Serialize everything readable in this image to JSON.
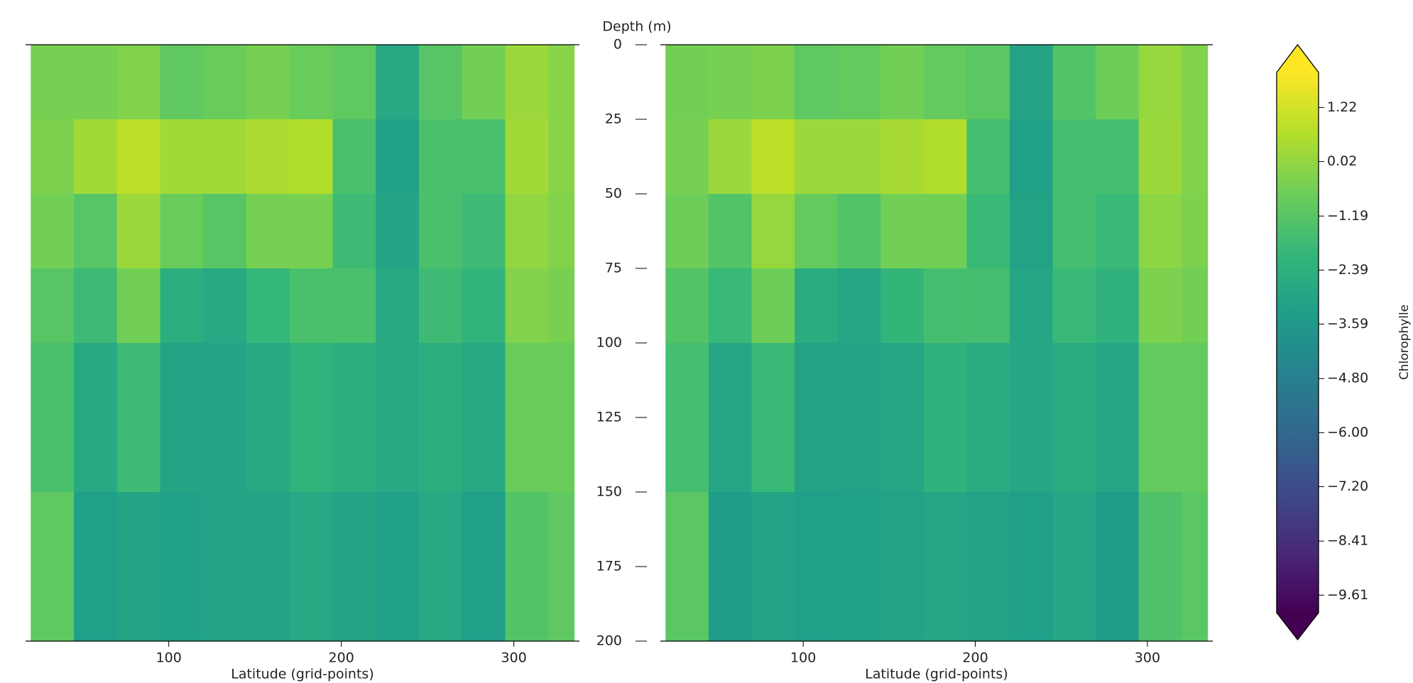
{
  "chart_data": [
    {
      "type": "heatmap",
      "xlabel": "Latitude (grid-points)",
      "ylabel": "Depth (m)",
      "xlim": [
        17,
        338
      ],
      "xticks": [
        100,
        200,
        300
      ],
      "ylim": [
        200,
        0
      ],
      "yticks": [
        0,
        25,
        50,
        75,
        100,
        125,
        150,
        175,
        200
      ],
      "x_edges": [
        20,
        45,
        70,
        95,
        120,
        145,
        170,
        195,
        220,
        245,
        270,
        295,
        320,
        335
      ],
      "y_edges": [
        0,
        25,
        50,
        75,
        100,
        150,
        200
      ],
      "values": [
        [
          -0.5,
          -0.5,
          -0.3,
          -1,
          -0.8,
          -0.5,
          -0.8,
          -1,
          -2.8,
          -1.2,
          -0.6,
          0.2,
          -0.2
        ],
        [
          -0.4,
          0.3,
          0.8,
          0.3,
          0.3,
          0.5,
          0.6,
          -1.5,
          -3.2,
          -1.5,
          -1.5,
          0.3,
          -0.2
        ],
        [
          -0.6,
          -1.2,
          0.2,
          -0.8,
          -1.2,
          -0.5,
          -0.5,
          -1.8,
          -3,
          -1.5,
          -1.8,
          0,
          -0.3
        ],
        [
          -1.2,
          -1.8,
          -0.6,
          -2.5,
          -2.8,
          -2,
          -1.5,
          -1.5,
          -2.8,
          -1.8,
          -2.2,
          -0.3,
          -0.5
        ],
        [
          -1.5,
          -2.8,
          -1.8,
          -3,
          -3,
          -2.8,
          -2.2,
          -2.5,
          -2.8,
          -2.5,
          -2.8,
          -0.8,
          -0.8
        ],
        [
          -1,
          -3.3,
          -3,
          -3.2,
          -3.1,
          -3,
          -2.8,
          -3,
          -3.2,
          -2.8,
          -3.3,
          -1.3,
          -1
        ]
      ]
    },
    {
      "type": "heatmap",
      "xlabel": "Latitude (grid-points)",
      "xlim": [
        17,
        338
      ],
      "xticks": [
        100,
        200,
        300
      ],
      "ylim": [
        200,
        0
      ],
      "x_edges": [
        20,
        45,
        70,
        95,
        120,
        145,
        170,
        195,
        220,
        245,
        270,
        295,
        320,
        335
      ],
      "y_edges": [
        0,
        25,
        50,
        75,
        100,
        150,
        200
      ],
      "values": [
        [
          -0.6,
          -0.5,
          -0.4,
          -1,
          -0.9,
          -0.6,
          -0.9,
          -1.1,
          -3,
          -1.3,
          -0.7,
          0.1,
          -0.3
        ],
        [
          -0.5,
          0.2,
          0.8,
          0.2,
          0.2,
          0.4,
          0.6,
          -1.6,
          -3.3,
          -1.6,
          -1.6,
          0.2,
          -0.3
        ],
        [
          -0.7,
          -1.3,
          0.1,
          -0.9,
          -1.3,
          -0.6,
          -0.6,
          -1.9,
          -3.1,
          -1.6,
          -1.9,
          -0.1,
          -0.4
        ],
        [
          -1.3,
          -1.9,
          -0.7,
          -2.6,
          -2.9,
          -2.1,
          -1.6,
          -1.6,
          -2.9,
          -1.9,
          -2.3,
          -0.4,
          -0.6
        ],
        [
          -1.6,
          -2.9,
          -1.9,
          -3.1,
          -3.1,
          -2.9,
          -2.3,
          -2.6,
          -2.9,
          -2.6,
          -2.9,
          -0.9,
          -0.9
        ],
        [
          -1.1,
          -3.4,
          -3.1,
          -3.3,
          -3.2,
          -3.1,
          -2.9,
          -3.1,
          -3.3,
          -2.9,
          -3.4,
          -1.4,
          -1.1
        ]
      ],
      "colorbar": {
        "label": "Chlorophylle",
        "lim": [
          -10,
          2
        ],
        "ticks": [
          1.22,
          0.02,
          {
            "value": -1.19,
            "label": "−1.19"
          },
          {
            "value": -2.39,
            "label": "−2.39"
          },
          {
            "value": -3.59,
            "label": "−3.59"
          },
          {
            "value": -4.8,
            "label": "−4.80"
          },
          {
            "value": -6,
            "label": "−6.00"
          },
          {
            "value": -7.2,
            "label": "−7.20"
          },
          {
            "value": -8.41,
            "label": "−8.41"
          },
          {
            "value": -9.61,
            "label": "−9.61"
          }
        ],
        "colors": [
          "#440154",
          "#482878",
          "#3e4a89",
          "#31688e",
          "#26828e",
          "#1f9e89",
          "#35b779",
          "#6ece58",
          "#b5de2b",
          "#fde725"
        ]
      }
    }
  ]
}
